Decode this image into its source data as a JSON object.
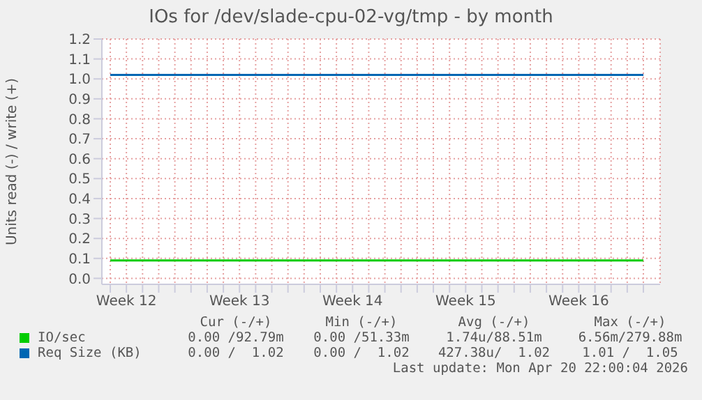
{
  "chart_data": {
    "type": "line",
    "title": "IOs for /dev/slade-cpu-02-vg/tmp - by month",
    "ylabel": "Units read (-) / write (+)",
    "categories": [
      null,
      "Week 12",
      null,
      null,
      null,
      null,
      null,
      null,
      "Week 13",
      null,
      null,
      null,
      null,
      null,
      null,
      "Week 14",
      null,
      null,
      null,
      null,
      null,
      null,
      "Week 15",
      null,
      null,
      null,
      null,
      null,
      null,
      "Week 16",
      null,
      null,
      null,
      null
    ],
    "series": [
      {
        "name": "IO/sec",
        "color": "#00cc00",
        "values": [
          0.09,
          0.09,
          0.09,
          0.09,
          0.09,
          0.09,
          0.09,
          0.09,
          0.09,
          0.09,
          0.09,
          0.09,
          0.09,
          0.09,
          0.09,
          0.09,
          0.09,
          0.09,
          0.09,
          0.09,
          0.09,
          0.09,
          0.09,
          0.09,
          0.09,
          0.09,
          0.09,
          0.09,
          0.09,
          0.09,
          0.09,
          0.09,
          0.09,
          0.09
        ]
      },
      {
        "name": "Req Size (KB)",
        "color": "#0066b3",
        "values": [
          1.02,
          1.02,
          1.02,
          1.02,
          1.02,
          1.02,
          1.02,
          1.02,
          1.02,
          1.02,
          1.02,
          1.02,
          1.02,
          1.02,
          1.02,
          1.02,
          1.02,
          1.02,
          1.02,
          1.02,
          1.02,
          1.02,
          1.02,
          1.02,
          1.02,
          1.02,
          1.02,
          1.02,
          1.02,
          1.02,
          1.02,
          1.02,
          1.02,
          1.02
        ]
      }
    ],
    "ylim": [
      -0.03,
      1.2
    ],
    "yticks": [
      {
        "value": 0,
        "label": "0.0"
      },
      0.1,
      0.2,
      0.3,
      0.4,
      0.5,
      0.6,
      0.7,
      0.8,
      0.9,
      {
        "value": 1,
        "label": "1.0"
      },
      1.1,
      1.2
    ],
    "grid": true,
    "legend": "bottom",
    "marker": "none",
    "annotations": [
      "Cur (-/+)",
      "Min (-/+)",
      "Avg (-/+)",
      "Max (-/+)",
      "0.00 /92.79m",
      "0.00 /51.33m",
      "1.74u/88.51m",
      "6.56m/279.88m",
      "0.00 /  1.02",
      "0.00 /  1.02",
      "427.38u/  1.02",
      "1.01 /  1.05",
      "Last update: Mon Apr 20 22:00:04 2026"
    ]
  }
}
